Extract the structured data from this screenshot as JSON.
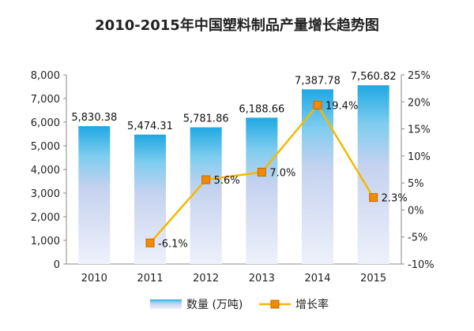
{
  "chart_data": {
    "type": "bar",
    "title": "2010-2015年中国塑料制品产量增长趋势图",
    "categories": [
      "2010",
      "2011",
      "2012",
      "2013",
      "2014",
      "2015"
    ],
    "series": [
      {
        "name": "数量 (万吨)",
        "type": "bar",
        "axis": "left",
        "values": [
          5830.38,
          5474.31,
          5781.86,
          6188.66,
          7387.78,
          7560.82
        ],
        "labels": [
          "5,830.38",
          "5,474.31",
          "5,781.86",
          "6,188.66",
          "7,387.78",
          "7,560.82"
        ],
        "color": "#29a9e1"
      },
      {
        "name": "增长率",
        "type": "line",
        "axis": "right",
        "values": [
          null,
          -6.1,
          5.6,
          7.0,
          19.4,
          2.3
        ],
        "labels": [
          "",
          "-6.1%",
          "5.6%",
          "7.0%",
          "19.4%",
          "2.3%"
        ],
        "color": "#f5b800",
        "marker_color": "#f08a00"
      }
    ],
    "ylim_left": [
      0,
      8000
    ],
    "yticks_left": [
      "0",
      "1,000",
      "2,000",
      "3,000",
      "4,000",
      "5,000",
      "6,000",
      "7,000",
      "8,000"
    ],
    "ylim_right": [
      -10,
      25
    ],
    "yticks_right": [
      "-10%",
      "-5%",
      "0%",
      "5%",
      "10%",
      "15%",
      "20%",
      "25%"
    ],
    "grid": false,
    "legend_position": "bottom"
  }
}
